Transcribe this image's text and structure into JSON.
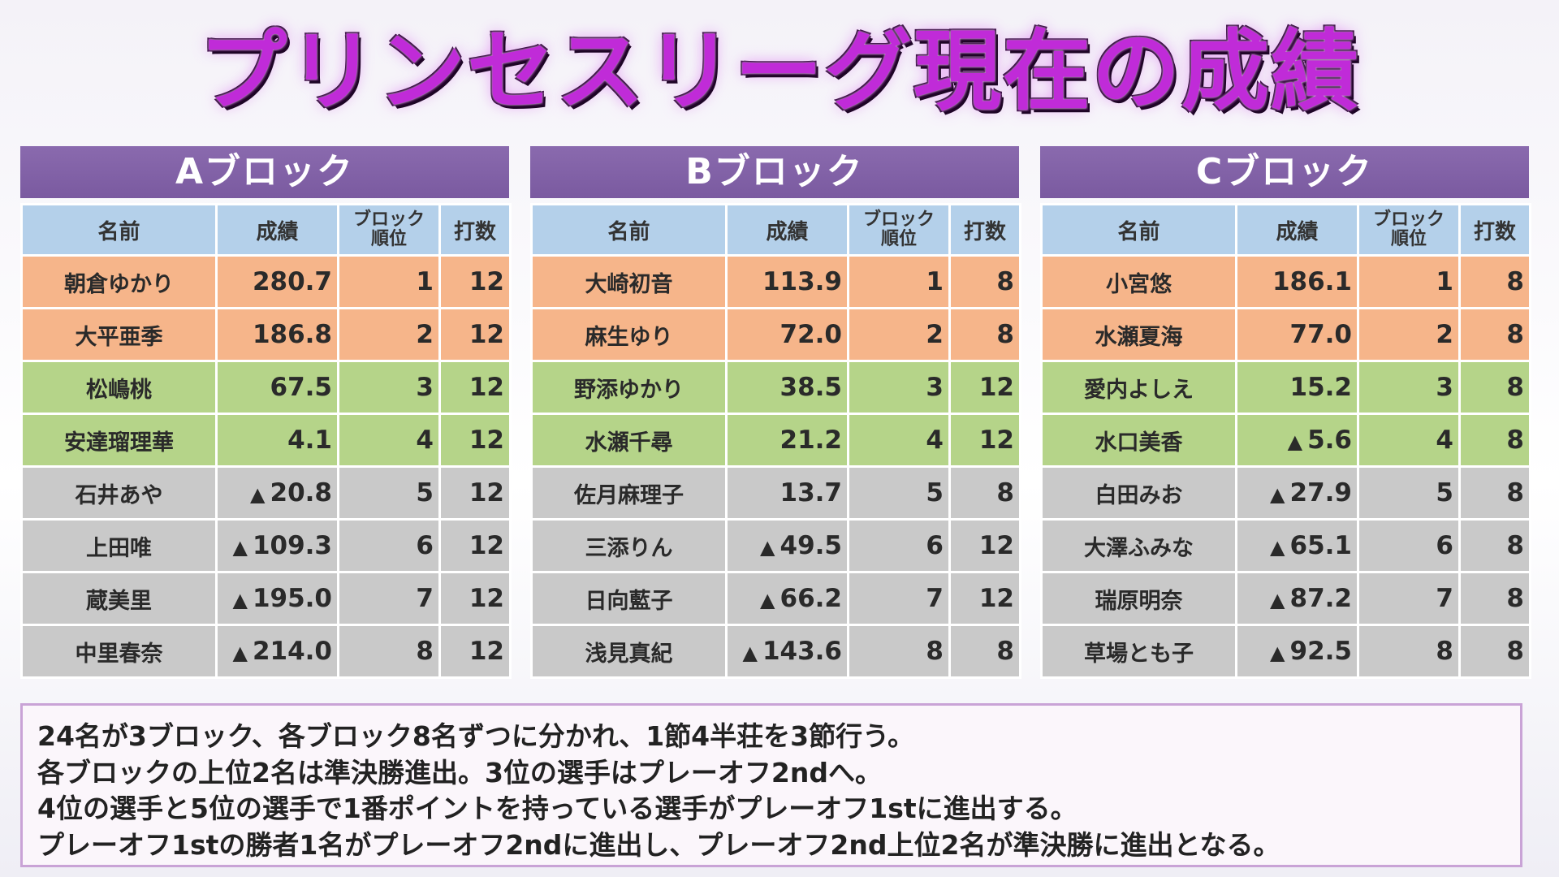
{
  "title": "プリンセスリーグ現在の成績",
  "columns": {
    "name": "名前",
    "score": "成績",
    "block_rank_line1": "ブロック",
    "block_rank_line2": "順位",
    "games": "打数"
  },
  "colors": {
    "semifinal": "#f6b58a",
    "playoff": "#b5d489",
    "eliminated": "#c9c9c9",
    "header": "#7a5aa0",
    "column_header": "#b4d0ea"
  },
  "blocks": [
    {
      "label": "Aブロック",
      "rows": [
        {
          "name": "朝倉ゆかり",
          "neg": "",
          "score": "280.7",
          "rank": "1",
          "games": "12",
          "status": "semi"
        },
        {
          "name": "大平亜季",
          "neg": "",
          "score": "186.8",
          "rank": "2",
          "games": "12",
          "status": "semi"
        },
        {
          "name": "松嶋桃",
          "neg": "",
          "score": "67.5",
          "rank": "3",
          "games": "12",
          "status": "play"
        },
        {
          "name": "安達瑠理華",
          "neg": "",
          "score": "4.1",
          "rank": "4",
          "games": "12",
          "status": "play"
        },
        {
          "name": "石井あや",
          "neg": "▲",
          "score": "20.8",
          "rank": "5",
          "games": "12",
          "status": "out"
        },
        {
          "name": "上田唯",
          "neg": "▲",
          "score": "109.3",
          "rank": "6",
          "games": "12",
          "status": "out"
        },
        {
          "name": "蔵美里",
          "neg": "▲",
          "score": "195.0",
          "rank": "7",
          "games": "12",
          "status": "out"
        },
        {
          "name": "中里春奈",
          "neg": "▲",
          "score": "214.0",
          "rank": "8",
          "games": "12",
          "status": "out"
        }
      ]
    },
    {
      "label": "Bブロック",
      "rows": [
        {
          "name": "大崎初音",
          "neg": "",
          "score": "113.9",
          "rank": "1",
          "games": "8",
          "status": "semi"
        },
        {
          "name": "麻生ゆり",
          "neg": "",
          "score": "72.0",
          "rank": "2",
          "games": "8",
          "status": "semi"
        },
        {
          "name": "野添ゆかり",
          "neg": "",
          "score": "38.5",
          "rank": "3",
          "games": "12",
          "status": "play"
        },
        {
          "name": "水瀬千尋",
          "neg": "",
          "score": "21.2",
          "rank": "4",
          "games": "12",
          "status": "play"
        },
        {
          "name": "佐月麻理子",
          "neg": "",
          "score": "13.7",
          "rank": "5",
          "games": "8",
          "status": "out"
        },
        {
          "name": "三添りん",
          "neg": "▲",
          "score": "49.5",
          "rank": "6",
          "games": "12",
          "status": "out"
        },
        {
          "name": "日向藍子",
          "neg": "▲",
          "score": "66.2",
          "rank": "7",
          "games": "12",
          "status": "out"
        },
        {
          "name": "浅見真紀",
          "neg": "▲",
          "score": "143.6",
          "rank": "8",
          "games": "8",
          "status": "out"
        }
      ]
    },
    {
      "label": "Cブロック",
      "rows": [
        {
          "name": "小宮悠",
          "neg": "",
          "score": "186.1",
          "rank": "1",
          "games": "8",
          "status": "semi"
        },
        {
          "name": "水瀬夏海",
          "neg": "",
          "score": "77.0",
          "rank": "2",
          "games": "8",
          "status": "semi"
        },
        {
          "name": "愛内よしえ",
          "neg": "",
          "score": "15.2",
          "rank": "3",
          "games": "8",
          "status": "play"
        },
        {
          "name": "水口美香",
          "neg": "▲",
          "score": "5.6",
          "rank": "4",
          "games": "8",
          "status": "play"
        },
        {
          "name": "白田みお",
          "neg": "▲",
          "score": "27.9",
          "rank": "5",
          "games": "8",
          "status": "out"
        },
        {
          "name": "大澤ふみな",
          "neg": "▲",
          "score": "65.1",
          "rank": "6",
          "games": "8",
          "status": "out"
        },
        {
          "name": "瑞原明奈",
          "neg": "▲",
          "score": "87.2",
          "rank": "7",
          "games": "8",
          "status": "out"
        },
        {
          "name": "草場とも子",
          "neg": "▲",
          "score": "92.5",
          "rank": "8",
          "games": "8",
          "status": "out"
        }
      ]
    }
  ],
  "notes": [
    "24名が3ブロック、各ブロック8名ずつに分かれ、1節4半荘を3節行う。",
    "各ブロックの上位2名は準決勝進出。3位の選手はプレーオフ2ndへ。",
    "4位の選手と5位の選手で1番ポイントを持っている選手がプレーオフ1stに進出する。",
    "プレーオフ1stの勝者1名がプレーオフ2ndに進出し、プレーオフ2nd上位2名が準決勝に進出となる。"
  ]
}
